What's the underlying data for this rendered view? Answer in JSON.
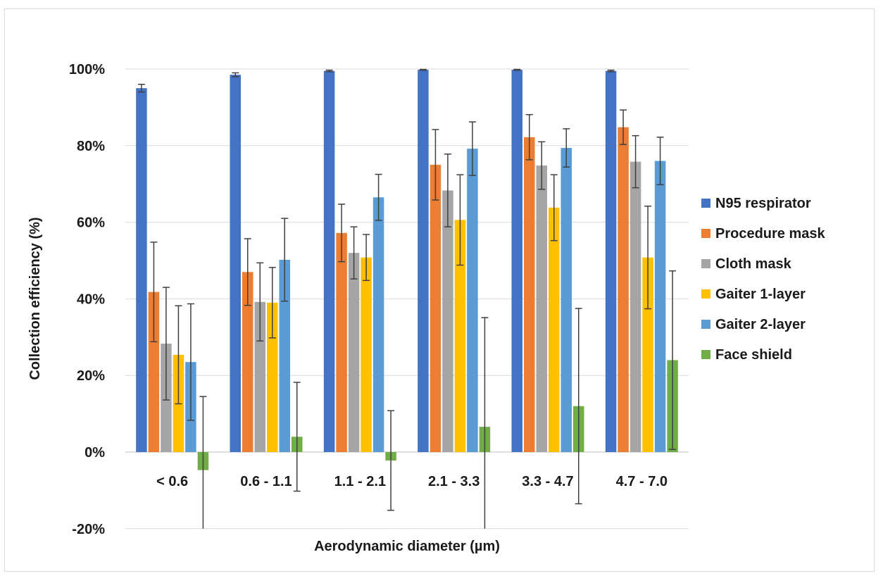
{
  "chart_data": {
    "type": "bar",
    "title": "",
    "xlabel": "Aerodynamic diameter (µm)",
    "ylabel": "Collection efficiency (%)",
    "ylim": [
      -20,
      100
    ],
    "yticks": [
      -20,
      0,
      20,
      40,
      60,
      80,
      100
    ],
    "ytick_labels": [
      "-20%",
      "0%",
      "20%",
      "40%",
      "60%",
      "80%",
      "100%"
    ],
    "grid": "horizontal",
    "legend_position": "right",
    "categories": [
      "< 0.6",
      "0.6 - 1.1",
      "1.1 - 2.1",
      "2.1 - 3.3",
      "3.3 - 4.7",
      "4.7 - 7.0"
    ],
    "series": [
      {
        "name": "N95 respirator",
        "color": "#4472C4",
        "values": [
          95,
          98.5,
          99.5,
          99.8,
          99.8,
          99.5
        ],
        "error": [
          1,
          0.5,
          0.2,
          0.1,
          0.1,
          0.2
        ]
      },
      {
        "name": "Procedure mask",
        "color": "#ED7D31",
        "values": [
          41.8,
          47,
          57.2,
          75,
          82.2,
          84.8
        ],
        "error": [
          13,
          8.7,
          7.5,
          9.2,
          5.9,
          4.5
        ]
      },
      {
        "name": "Cloth mask",
        "color": "#A5A5A5",
        "values": [
          28.3,
          39.2,
          52,
          68.3,
          74.8,
          75.8
        ],
        "error": [
          14.7,
          10.2,
          6.8,
          9.5,
          6.2,
          6.8
        ]
      },
      {
        "name": "Gaiter 1-layer",
        "color": "#FFC000",
        "values": [
          25.4,
          39,
          50.8,
          60.6,
          63.8,
          50.8
        ],
        "error": [
          12.8,
          9.2,
          6,
          11.8,
          8.6,
          13.4
        ]
      },
      {
        "name": "Gaiter 2-layer",
        "color": "#5B9BD5",
        "values": [
          23.5,
          50.2,
          66.5,
          79.2,
          79.4,
          76
        ],
        "error": [
          15.2,
          10.8,
          6,
          7,
          5,
          6.2
        ]
      },
      {
        "name": "Face shield",
        "color": "#70AD47",
        "values": [
          -4.7,
          4,
          -2.2,
          6.6,
          12,
          24
        ],
        "error": [
          19.2,
          14.2,
          13,
          28.5,
          25.5,
          23.3
        ]
      }
    ]
  }
}
